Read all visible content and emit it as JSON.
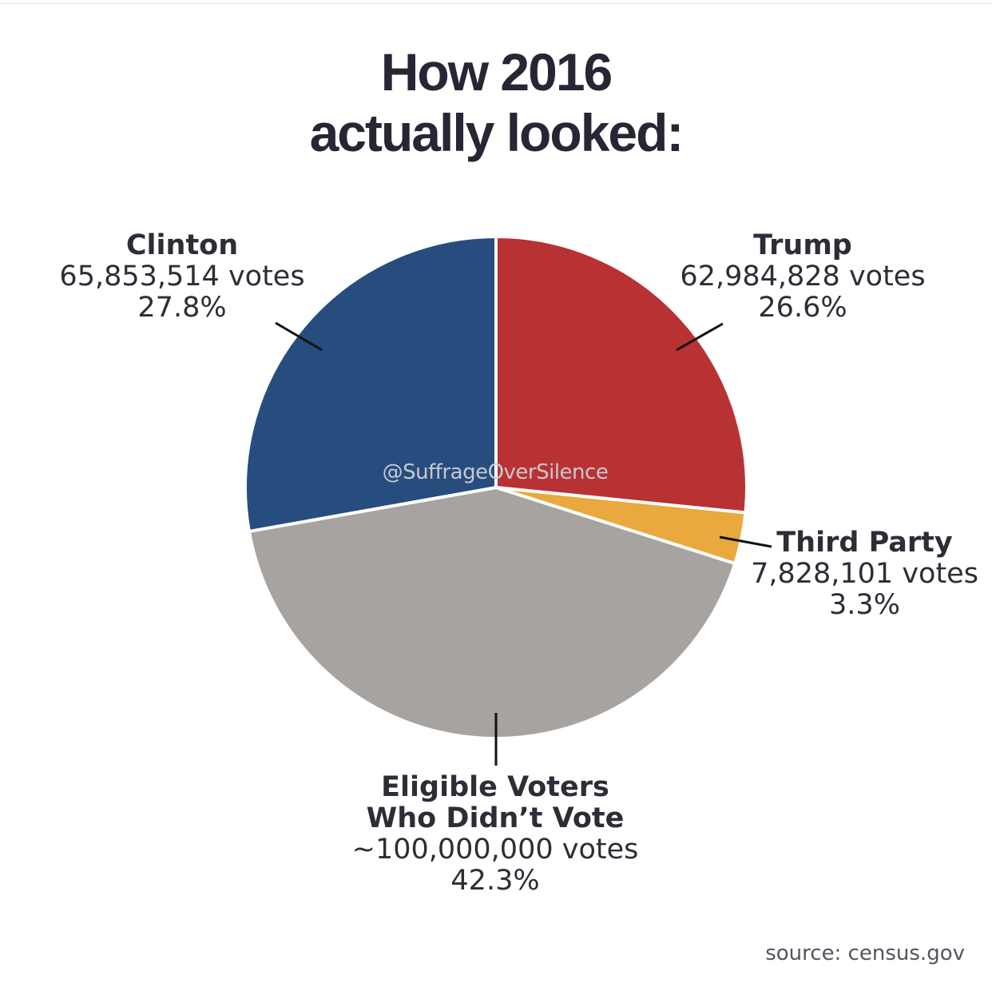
{
  "title_lines": [
    "How 2016",
    "actually looked:"
  ],
  "watermark": "@SuffrageOverSilence",
  "source": "source: census.gov",
  "chart_data": {
    "type": "pie",
    "title": "How 2016 actually looked:",
    "slices": [
      {
        "name": "Trump",
        "votes_label": "62,984,828 votes",
        "votes": 62984828,
        "percent": 26.6,
        "percent_label": "26.6%",
        "color": "#b83234"
      },
      {
        "name": "Third Party",
        "votes_label": "7,828,101 votes",
        "votes": 7828101,
        "percent": 3.3,
        "percent_label": "3.3%",
        "color": "#e9a93e"
      },
      {
        "name_lines": [
          "Eligible Voters",
          "Who Didn’t Vote"
        ],
        "votes_label": "~100,000,000 votes",
        "votes": 100000000,
        "percent": 42.3,
        "percent_label": "42.3%",
        "color": "#a7a3a0"
      },
      {
        "name": "Clinton",
        "votes_label": "65,853,514 votes",
        "votes": 65853514,
        "percent": 27.8,
        "percent_label": "27.8%",
        "color": "#264d7e"
      }
    ]
  }
}
